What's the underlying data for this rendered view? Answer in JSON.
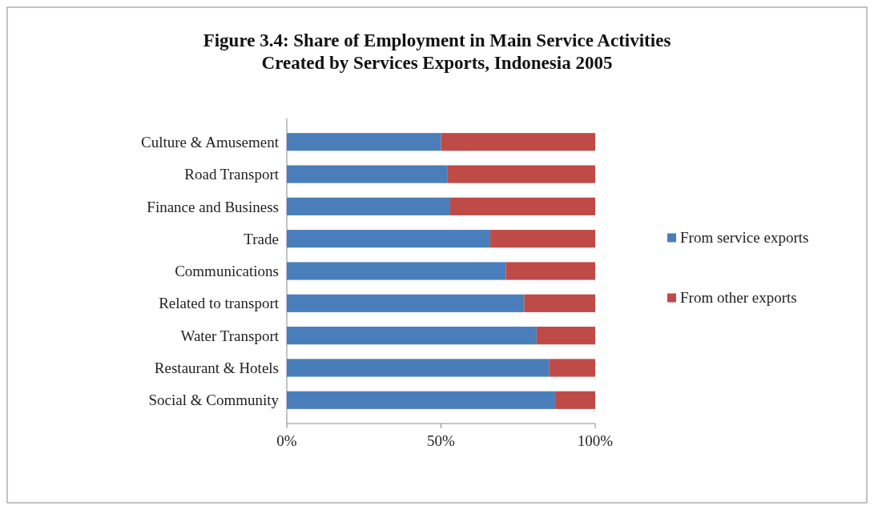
{
  "chart_data": {
    "type": "bar",
    "orientation": "horizontal",
    "stacked": true,
    "title": "Figure 3.4: Share of Employment in Main Service Activities Created by Services Exports, Indonesia 2005",
    "categories": [
      "Culture & Amusement",
      "Road Transport",
      "Finance and Business",
      "Trade",
      "Communications",
      "Related to transport",
      "Water Transport",
      "Restaurant & Hotels",
      "Social & Community"
    ],
    "series": [
      {
        "name": "From service exports",
        "color": "#4a7ebb",
        "values": [
          50,
          52,
          53,
          66,
          71,
          77,
          81,
          85,
          87
        ]
      },
      {
        "name": "From other exports",
        "color": "#be4b48",
        "values": [
          50,
          48,
          47,
          34,
          29,
          23,
          19,
          15,
          13
        ]
      }
    ],
    "xlim": [
      0,
      100
    ],
    "xticks": [
      {
        "value": 0,
        "label": "0%"
      },
      {
        "value": 50,
        "label": "50%"
      },
      {
        "value": 100,
        "label": "100%"
      }
    ],
    "legend": "right"
  }
}
